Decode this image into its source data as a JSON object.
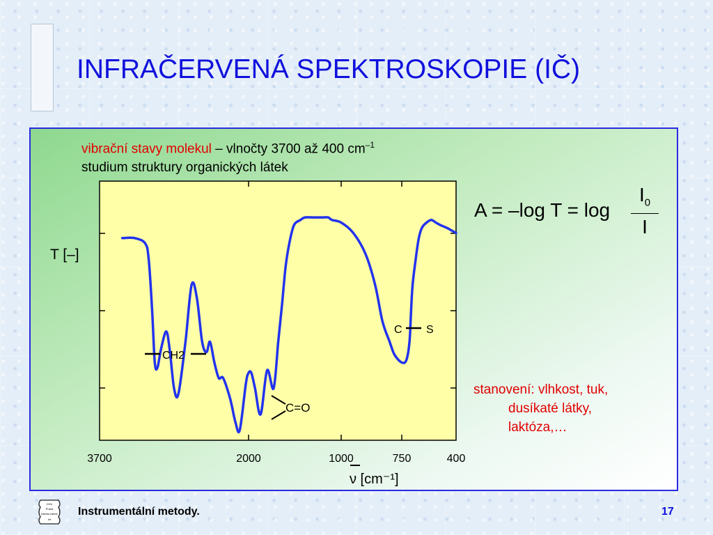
{
  "slide": {
    "title": "INFRAČERVENÁ SPEKTROSKOPIE (IČ)",
    "intro_red": "vibrační stavy molekul",
    "intro_dash": " – ",
    "intro_rest": "vlnočty 3700 až 400 cm",
    "intro_exp": "–1",
    "intro_line2": "studium struktury organických látek",
    "formula": {
      "lhs": "A = –log T = log",
      "numerator": "I",
      "numerator_sub": "0",
      "denominator": "I"
    },
    "notes": {
      "line1": "stanovení: vlhkost, tuk,",
      "line2": "dusíkaté látky,",
      "line3": "laktóza,…"
    },
    "footer": "Instrumentální metody.",
    "page_number": "17",
    "logo_text": [
      "CHU",
      "Praha",
      "Katedra chemie",
      "Inf"
    ]
  },
  "colors": {
    "title": "#1010dd",
    "accent_red": "#e00000",
    "panel_border": "#2a2ae0",
    "plot_bg": "#ffffa8",
    "curve": "#2233ee"
  },
  "chart_data": {
    "type": "line",
    "x_tick_labels": [
      "3700",
      "2000",
      "1000",
      "750",
      "400"
    ],
    "xlabel": "ν [cm⁻¹]",
    "ylabel": "T [–]",
    "grid": false,
    "annotations": [
      "CH2",
      "C=O",
      "C",
      "S"
    ],
    "series": [
      {
        "x": [
          3440,
          3300,
          3180,
          3140,
          3100,
          3070,
          3040,
          3000,
          2940,
          2900,
          2850,
          2800,
          2720,
          2650,
          2590,
          2530,
          2480,
          2440,
          2390,
          2340,
          2290,
          2210,
          2150,
          2100,
          2030,
          2000,
          1970,
          1930,
          1870,
          1800,
          1730,
          1680,
          1640,
          1600,
          1560,
          1510,
          1440,
          1390,
          1300,
          1210,
          1140,
          1100,
          1000,
          950,
          900,
          860,
          830,
          800,
          780,
          750,
          720,
          700,
          690,
          680,
          660,
          640,
          620,
          590,
          560,
          530,
          500,
          460,
          430,
          400
        ],
        "y": [
          0.78,
          0.78,
          0.76,
          0.7,
          0.5,
          0.3,
          0.28,
          0.35,
          0.42,
          0.35,
          0.2,
          0.18,
          0.38,
          0.6,
          0.55,
          0.38,
          0.34,
          0.38,
          0.3,
          0.24,
          0.24,
          0.16,
          0.07,
          0.04,
          0.22,
          0.26,
          0.26,
          0.2,
          0.1,
          0.27,
          0.2,
          0.38,
          0.52,
          0.67,
          0.76,
          0.83,
          0.85,
          0.86,
          0.86,
          0.86,
          0.86,
          0.85,
          0.84,
          0.8,
          0.72,
          0.6,
          0.46,
          0.38,
          0.33,
          0.3,
          0.31,
          0.38,
          0.5,
          0.6,
          0.7,
          0.78,
          0.82,
          0.84,
          0.85,
          0.84,
          0.83,
          0.82,
          0.81,
          0.8
        ],
        "x_scale": "piecewise: 3700 / 2000 / 1000 / 750 / 400 tick positions",
        "y_range": [
          0,
          1
        ]
      }
    ]
  }
}
